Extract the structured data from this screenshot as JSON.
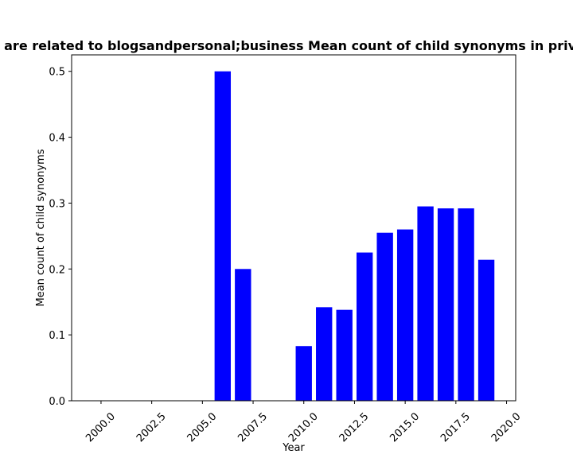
{
  "chart_data": {
    "type": "bar",
    "title": "are related to blogsandpersonal;business Mean count of child synonyms in priva",
    "xlabel": "Year",
    "ylabel": "Mean count of child synonyms",
    "x": [
      2006,
      2007,
      2010,
      2011,
      2012,
      2013,
      2014,
      2015,
      2016,
      2017,
      2018,
      2019
    ],
    "values": [
      0.5,
      0.2,
      0.083,
      0.142,
      0.138,
      0.225,
      0.255,
      0.26,
      0.295,
      0.292,
      0.292,
      0.214
    ],
    "xlim": [
      1998.55,
      2020.45
    ],
    "ylim": [
      0,
      0.525
    ],
    "xticks": [
      2000.0,
      2002.5,
      2005.0,
      2007.5,
      2010.0,
      2012.5,
      2015.0,
      2017.5,
      2020.0
    ],
    "xtick_labels": [
      "2000.0",
      "2002.5",
      "2005.0",
      "2007.5",
      "2010.0",
      "2012.5",
      "2015.0",
      "2017.5",
      "2020.0"
    ],
    "yticks": [
      0.0,
      0.1,
      0.2,
      0.3,
      0.4,
      0.5
    ],
    "ytick_labels": [
      "0.0",
      "0.1",
      "0.2",
      "0.3",
      "0.4",
      "0.5"
    ],
    "bar_width": 0.8,
    "bar_color": "#0000ff",
    "grid": false,
    "legend": "none"
  }
}
